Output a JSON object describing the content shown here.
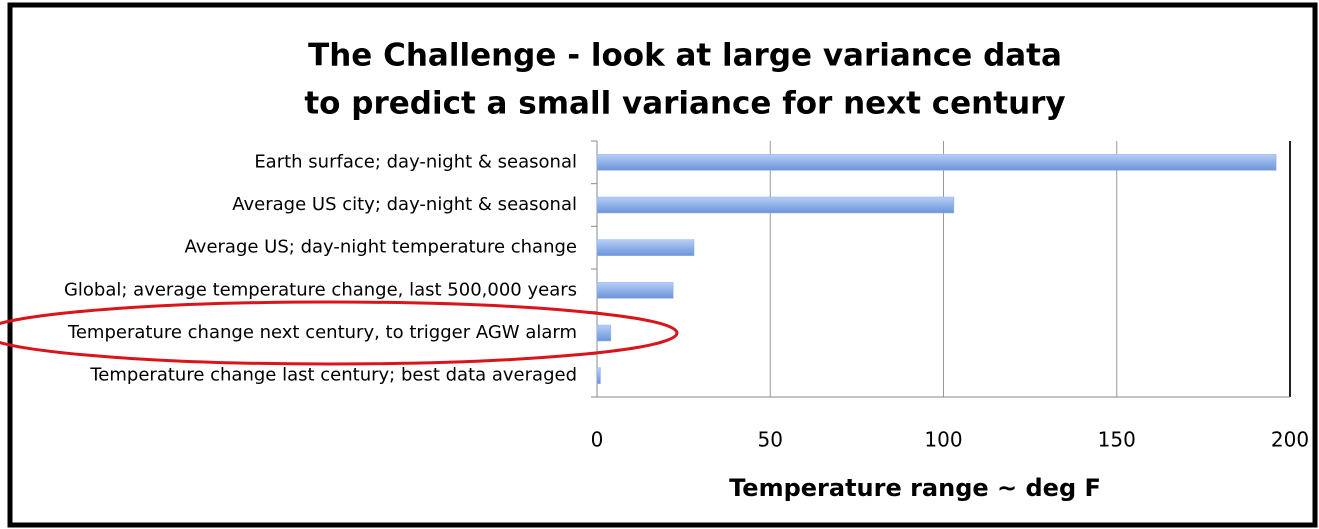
{
  "chart_data": {
    "type": "barh",
    "title": [
      "The Challenge - look at large variance data",
      "to predict a small variance for next century"
    ],
    "xlabel": "Temperature range ~ deg F",
    "categories": [
      "Earth surface; day-night & seasonal",
      "Average US city; day-night & seasonal",
      "Average US; day-night temperature change",
      "Global; average temperature change, last 500,000 years",
      "Temperature change next century, to trigger AGW alarm",
      "Temperature change last century; best data averaged"
    ],
    "values": [
      196,
      103,
      28,
      22,
      4,
      1
    ],
    "color": "#8fb1ea",
    "xlim": [
      0,
      200
    ],
    "xticks": [
      0,
      50,
      100,
      150,
      200
    ],
    "grid": true
  }
}
